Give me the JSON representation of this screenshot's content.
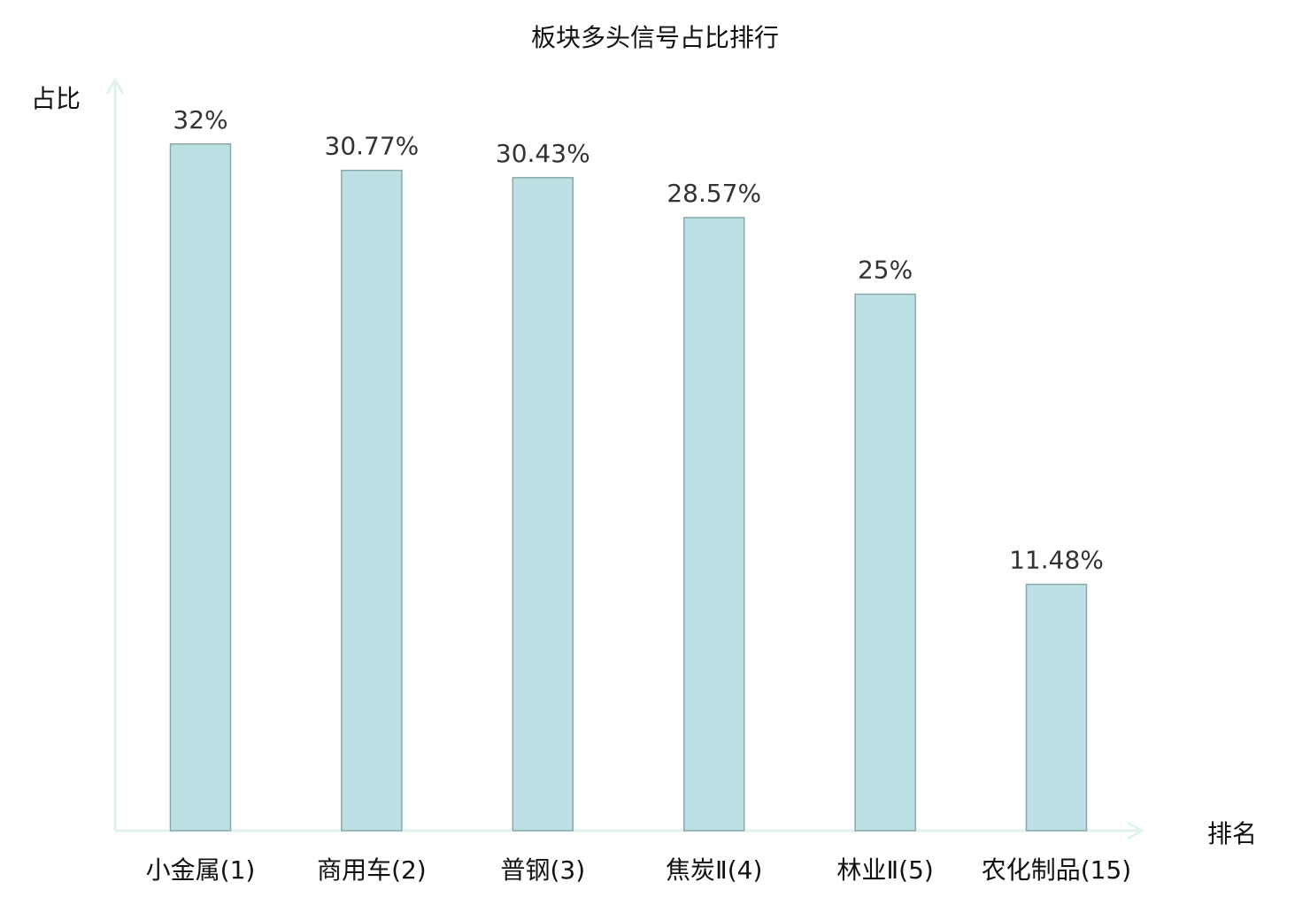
{
  "chart_data": {
    "type": "bar",
    "title": "板块多头信号占比排行",
    "xlabel": "排名",
    "ylabel": "占比",
    "categories": [
      "小金属(1)",
      "商用车(2)",
      "普钢(3)",
      "焦炭Ⅱ(4)",
      "林业Ⅱ(5)",
      "农化制品(15)"
    ],
    "values": [
      32,
      30.77,
      30.43,
      28.57,
      25,
      11.48
    ],
    "value_labels": [
      "32%",
      "30.77%",
      "30.43%",
      "28.57%",
      "25%",
      "11.48%"
    ],
    "highlighted_category_index": 5,
    "ylim": [
      0,
      35
    ],
    "grid": false,
    "colors": {
      "bar_fill": "#bce0e3",
      "bar_stroke": "#8aa8a8",
      "axis": "#dff2ef",
      "highlight_label": "#e01010",
      "label": "#111111",
      "value_label": "#333333"
    }
  }
}
